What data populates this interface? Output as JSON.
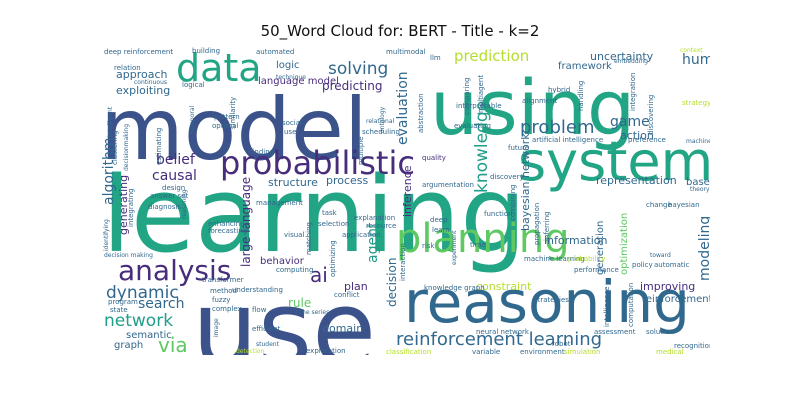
{
  "title": "50_Word Cloud for: BERT - Title - k=2",
  "palette": {
    "teal": "#21a585",
    "navy": "#3b528b",
    "purple": "#472d7b",
    "darkblue": "#31688e",
    "green": "#5ec962",
    "lime": "#b5de2b",
    "cyan": "#1f9e89"
  },
  "words": {
    "model": "model",
    "using": "using",
    "learning": "learning",
    "use": "use",
    "system": "system",
    "reasoning": "reasoning",
    "planning": "planning",
    "data": "data",
    "probabilistic": "probabilistic",
    "analysis": "analysis",
    "network": "network",
    "reinforcement_learning": "reinforcement learning",
    "problem": "problem",
    "knowledge": "knowledge",
    "dynamic": "dynamic",
    "search": "search",
    "via": "via",
    "ai": "ai",
    "solving": "solving",
    "prediction": "prediction",
    "human": "human",
    "algorithm": "algorithm",
    "causal": "causal",
    "belief": "belief",
    "evaluation": "evaluation",
    "game": "game",
    "agent": "agent",
    "modeling": "modeling",
    "representation": "representation",
    "decision": "decision",
    "inference": "inference",
    "approach": "approach",
    "exploiting": "exploiting",
    "language_model": "language model",
    "logic": "logic",
    "predicting": "predicting",
    "framework": "framework",
    "uncertainty": "uncertainty",
    "action": "action",
    "bayesian_network": "bayesian network",
    "information": "information",
    "structure": "structure",
    "process": "process",
    "plan": "plan",
    "constraint": "constraint",
    "improving": "improving",
    "reinforcement": "reinforcement",
    "rule": "rule",
    "domain": "domain",
    "behavior": "behavior",
    "large_language": "large language",
    "generating": "generating",
    "semantic": "semantic",
    "graph": "graph",
    "optimization": "optimization",
    "generation": "generation",
    "base": "base",
    "bayesian": "bayesian",
    "multimodal": "multimodal",
    "deep_reinforcement": "deep reinforcement",
    "building": "building",
    "automated": "automated",
    "llm": "llm",
    "embedding": "embedding",
    "context": "context",
    "strategy": "strategy",
    "artificial_intelligence": "artificial intelligence",
    "preference": "preference",
    "machine": "machine",
    "alignment": "alignment",
    "hybrid": "hybrid",
    "handling": "handling",
    "integration": "integration",
    "discovering": "discovering",
    "interpretable": "interpretable",
    "abstraction": "abstraction",
    "evaluating": "evaluating",
    "scheduling": "scheduling",
    "relational": "relational",
    "multiple": "multiple",
    "quality": "quality",
    "future": "future",
    "discovery": "discovery",
    "argumentation": "argumentation",
    "function": "function",
    "learn": "learn",
    "deep": "deep",
    "interaction": "interaction",
    "machine_learning": "machine learning",
    "knowledge_graph": "knowledge graph",
    "neural_network": "neural network",
    "robot": "robot",
    "environment": "environment",
    "simulation": "simulation",
    "assessment": "assessment",
    "solution": "solution",
    "medical": "medical",
    "recognition": "recognition",
    "classification": "classification",
    "variable": "variable",
    "exploration": "exploration",
    "detection": "detection",
    "efficient": "efficient",
    "understanding": "understanding",
    "complex": "complex",
    "fuzzy": "fuzzy",
    "method": "method",
    "transformer": "transformer",
    "state": "state",
    "program": "program",
    "decision_making": "decision making",
    "computing": "computing",
    "forecasting": "forecasting",
    "enhancing": "enhancing",
    "identifying": "identifying",
    "integrating": "integrating",
    "diagnosis": "diagnosis",
    "reasoning_small": "reasoning",
    "answer_set": "answer set",
    "design": "design",
    "management": "management",
    "visual": "visual",
    "selection": "selection",
    "explanation": "explanation",
    "resource": "resource",
    "application": "application",
    "matching": "matching",
    "optimizing": "optimizing",
    "conflict": "conflict",
    "time_series": "time series",
    "flow": "flow",
    "image": "image",
    "strategies": "strategies",
    "performance": "performance",
    "policy": "policy",
    "toward": "toward",
    "automatic": "automatic",
    "theory": "theory",
    "change": "change",
    "probability": "probability",
    "experiment": "experiment",
    "time": "time",
    "risk": "risk",
    "intelligence": "intelligence",
    "computation": "computation",
    "propagation": "propagation",
    "inferring": "inferring",
    "combining": "combining",
    "task": "task",
    "social": "social",
    "user": "user",
    "similarity": "similarity",
    "pattern": "pattern",
    "optimal": "optimal",
    "clustering": "clustering",
    "decisionmaking": "decisionmaking",
    "intelligent": "intelligent",
    "continuous": "continuous",
    "relation": "relation",
    "logical": "logical",
    "technique": "technique",
    "estimating": "estimating",
    "finding": "finding",
    "student": "student",
    "temporal": "temporal",
    "ontology": "ontology",
    "comparing": "comparing",
    "multiagent": "multiagent"
  }
}
